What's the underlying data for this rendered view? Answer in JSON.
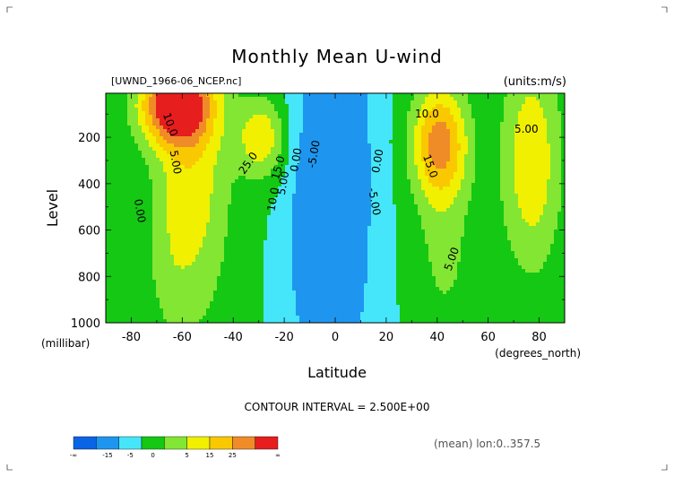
{
  "chart_data": {
    "type": "heatmap",
    "title": "Monthly Mean U-wind",
    "dataset_label": "[UWND_1966-06_NCEP.nc]",
    "units_label": "(units:m/s)",
    "xlabel": "Latitude",
    "x_units": "(degrees_north)",
    "ylabel": "Level",
    "y_units": "(millibar)",
    "xlim": [
      -90,
      90
    ],
    "ylim": [
      1000,
      10
    ],
    "x_ticks": [
      -80,
      -60,
      -40,
      -20,
      0,
      20,
      40,
      60,
      80
    ],
    "y_ticks": [
      200,
      400,
      600,
      800,
      1000
    ],
    "contour_interval_text": "CONTOUR INTERVAL = 2.500E+00",
    "footer_note": "(mean) lon:0..357.5",
    "contour_labels": [
      {
        "text": "10.0",
        "lat": -66,
        "lev": 150,
        "rot": 70
      },
      {
        "text": "5.00",
        "lat": -64,
        "lev": 310,
        "rot": 80
      },
      {
        "text": "0.00",
        "lat": -78,
        "lev": 520,
        "rot": 80
      },
      {
        "text": "25.0",
        "lat": -33,
        "lev": 320,
        "rot": -55
      },
      {
        "text": "15.0",
        "lat": -21,
        "lev": 335,
        "rot": -75
      },
      {
        "text": "10.0",
        "lat": -23,
        "lev": 470,
        "rot": -80
      },
      {
        "text": "5.00",
        "lat": -19,
        "lev": 400,
        "rot": -80
      },
      {
        "text": "0.00",
        "lat": -14,
        "lev": 300,
        "rot": -80
      },
      {
        "text": "-5.00",
        "lat": -7,
        "lev": 275,
        "rot": -80
      },
      {
        "text": "0.00",
        "lat": 18,
        "lev": 305,
        "rot": -80
      },
      {
        "text": "-5.00",
        "lat": 14,
        "lev": 480,
        "rot": 80
      },
      {
        "text": "10.0",
        "lat": 36,
        "lev": 115,
        "rot": 0
      },
      {
        "text": "15.0",
        "lat": 36,
        "lev": 330,
        "rot": 70
      },
      {
        "text": "5.00",
        "lat": 47,
        "lev": 730,
        "rot": -70
      },
      {
        "text": "5.00",
        "lat": 75,
        "lev": 180,
        "rot": 0
      }
    ],
    "jets": [
      {
        "lat": -63,
        "lev": 60,
        "slat": 14,
        "slev": 170,
        "amp": 28,
        "rot": 0
      },
      {
        "lat": -29,
        "lev": 200,
        "slat": 9,
        "slev": 170,
        "amp": 14,
        "rot": 0
      },
      {
        "lat": -56,
        "lev": 350,
        "slat": 15,
        "slev": 650,
        "amp": 13,
        "rot": 0
      },
      {
        "lat": -66,
        "lev": 750,
        "slat": 9,
        "slev": 350,
        "amp": 3,
        "rot": 0
      },
      {
        "lat": 41,
        "lev": 220,
        "slat": 11,
        "slev": 250,
        "amp": 22,
        "rot": 0
      },
      {
        "lat": 43,
        "lev": 700,
        "slat": 12,
        "slev": 400,
        "amp": 6,
        "rot": 0
      },
      {
        "lat": 77,
        "lev": 300,
        "slat": 12,
        "slev": 480,
        "amp": 14,
        "rot": 0
      },
      {
        "lat": 0,
        "lev": 400,
        "slat": 14,
        "slev": 900,
        "amp": -13,
        "rot": 0
      },
      {
        "lat": -12,
        "lev": 700,
        "slat": 7,
        "slev": 400,
        "amp": -4,
        "rot": 0
      }
    ],
    "colorbar": {
      "colors": [
        "#0a64e6",
        "#1e96f0",
        "#46e6fa",
        "#14c814",
        "#82e632",
        "#f0f000",
        "#fac800",
        "#f08c28",
        "#e61e1e"
      ],
      "tick_labels": [
        "-∞",
        "-15",
        "-5",
        "0",
        "5",
        "15",
        "25",
        "∞"
      ]
    }
  }
}
